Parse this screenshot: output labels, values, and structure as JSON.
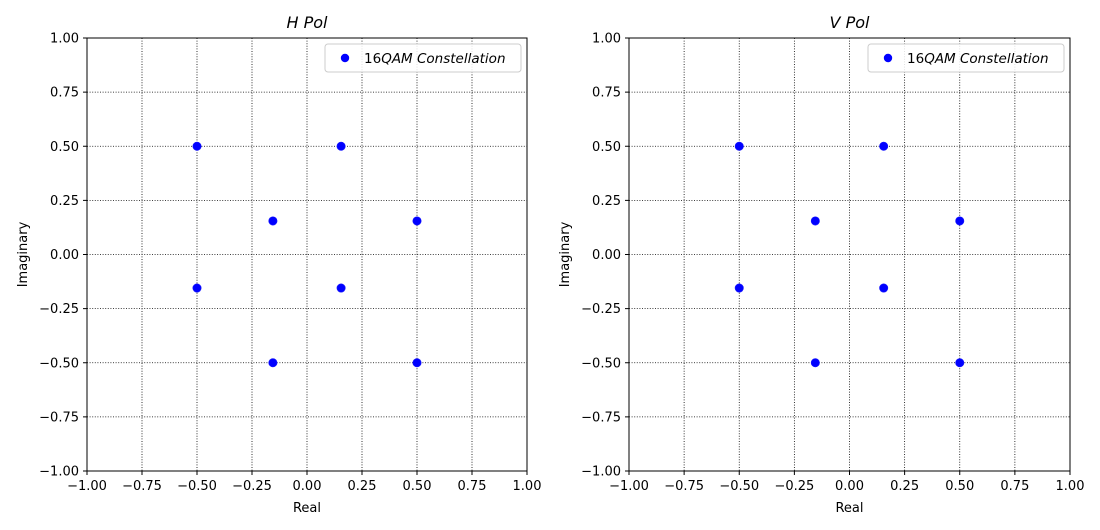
{
  "chart_data": [
    {
      "type": "scatter",
      "title": "H Pol",
      "xlabel": "Real",
      "ylabel": "Imaginary",
      "xlim": [
        -1,
        1
      ],
      "ylim": [
        -1,
        1
      ],
      "xticks": [
        -1.0,
        -0.75,
        -0.5,
        -0.25,
        0.0,
        0.25,
        0.5,
        0.75,
        1.0
      ],
      "yticks": [
        -1.0,
        -0.75,
        -0.5,
        -0.25,
        0.0,
        0.25,
        0.5,
        0.75,
        1.0
      ],
      "tick_labels": [
        "−1.00",
        "−0.75",
        "−0.50",
        "−0.25",
        "0.00",
        "0.25",
        "0.50",
        "0.75",
        "1.00"
      ],
      "grid": true,
      "grid_style": "dotted",
      "legend": {
        "position": "top-right",
        "prefix": "16",
        "emphasis": "QAM Constellation"
      },
      "series": [
        {
          "name": "16QAM Constellation",
          "color": "#0000ff",
          "marker": "circle",
          "points": [
            [
              -0.5,
              0.5
            ],
            [
              0.155,
              0.5
            ],
            [
              -0.155,
              0.155
            ],
            [
              0.5,
              0.155
            ],
            [
              -0.5,
              -0.155
            ],
            [
              0.155,
              -0.155
            ],
            [
              -0.155,
              -0.5
            ],
            [
              0.5,
              -0.5
            ]
          ]
        }
      ]
    },
    {
      "type": "scatter",
      "title": "V Pol",
      "xlabel": "Real",
      "ylabel": "Imaginary",
      "xlim": [
        -1,
        1
      ],
      "ylim": [
        -1,
        1
      ],
      "xticks": [
        -1.0,
        -0.75,
        -0.5,
        -0.25,
        0.0,
        0.25,
        0.5,
        0.75,
        1.0
      ],
      "yticks": [
        -1.0,
        -0.75,
        -0.5,
        -0.25,
        0.0,
        0.25,
        0.5,
        0.75,
        1.0
      ],
      "tick_labels": [
        "−1.00",
        "−0.75",
        "−0.50",
        "−0.25",
        "0.00",
        "0.25",
        "0.50",
        "0.75",
        "1.00"
      ],
      "grid": true,
      "grid_style": "dotted",
      "legend": {
        "position": "top-right",
        "prefix": "16",
        "emphasis": "QAM Constellation"
      },
      "series": [
        {
          "name": "16QAM Constellation",
          "color": "#0000ff",
          "marker": "circle",
          "points": [
            [
              -0.5,
              0.5
            ],
            [
              0.155,
              0.5
            ],
            [
              -0.155,
              0.155
            ],
            [
              0.5,
              0.155
            ],
            [
              -0.5,
              -0.155
            ],
            [
              0.155,
              -0.155
            ],
            [
              -0.155,
              -0.5
            ],
            [
              0.5,
              -0.5
            ]
          ]
        }
      ]
    }
  ]
}
